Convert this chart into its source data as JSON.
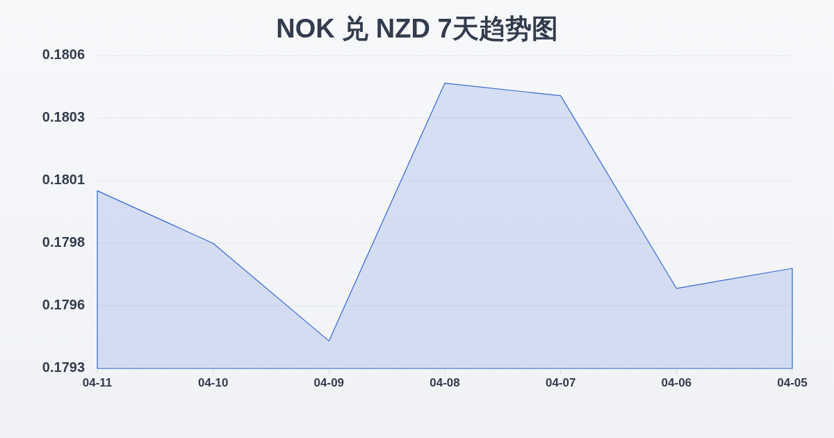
{
  "chart_data": {
    "type": "area",
    "title": "NOK 兑 NZD 7天趋势图",
    "categories": [
      "04-11",
      "04-10",
      "04-09",
      "04-08",
      "04-07",
      "04-06",
      "04-05"
    ],
    "values": [
      0.18004,
      0.17983,
      0.17944,
      0.18047,
      0.18042,
      0.17965,
      0.17973
    ],
    "color": "#3366d6",
    "ylim": [
      0.17933,
      0.18058
    ],
    "yticks": [
      {
        "value": 0.17933,
        "label": "0.1793"
      },
      {
        "value": 0.17958,
        "label": "0.1796"
      },
      {
        "value": 0.17983,
        "label": "0.1798"
      },
      {
        "value": 0.18008,
        "label": "0.1801"
      },
      {
        "value": 0.18033,
        "label": "0.1803"
      },
      {
        "value": 0.18058,
        "label": "0.1806"
      }
    ],
    "grid": "y"
  }
}
